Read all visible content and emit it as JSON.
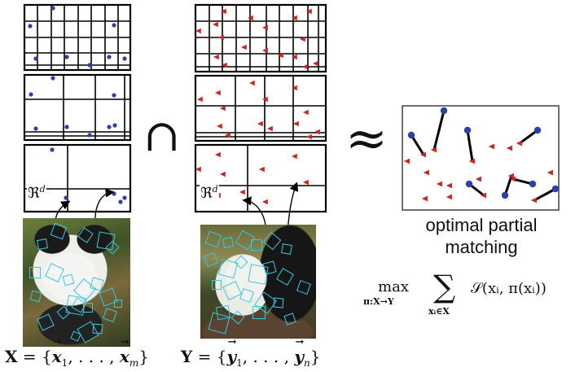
{
  "labels": {
    "space_x": "ℜ",
    "space_y": "ℜ",
    "space_exp": "d",
    "intersection": "∩",
    "approx": "≈",
    "matching_line1": "optimal partial",
    "matching_line2": "matching"
  },
  "formulas": {
    "x_set": {
      "lhs": "X",
      "eq": " = {",
      "first_var": "x",
      "first_sub": "1",
      "mid": ", . . . , ",
      "last_var": "x",
      "last_sub": "m",
      "close": "}"
    },
    "y_set": {
      "lhs": "Y",
      "eq": " = {",
      "first_var": "y",
      "first_sub": "1",
      "mid": ", . . . , ",
      "last_var": "y",
      "last_sub": "n",
      "close": "}"
    },
    "objective": {
      "max_word": "max",
      "max_sub": "π:X→Y",
      "sigma": "∑",
      "sum_sub": "xᵢ∈X",
      "body": "𝒮(xᵢ, π(xᵢ))"
    }
  },
  "colors": {
    "grid_line": "#000000",
    "point_x": "#2b3fae",
    "point_y": "#d6201f",
    "feature_box": "#38c8e0",
    "match_line": "#000000"
  },
  "icons": [
    "blue-point-icon",
    "red-triangle-icon",
    "curved-arrow-icon"
  ]
}
